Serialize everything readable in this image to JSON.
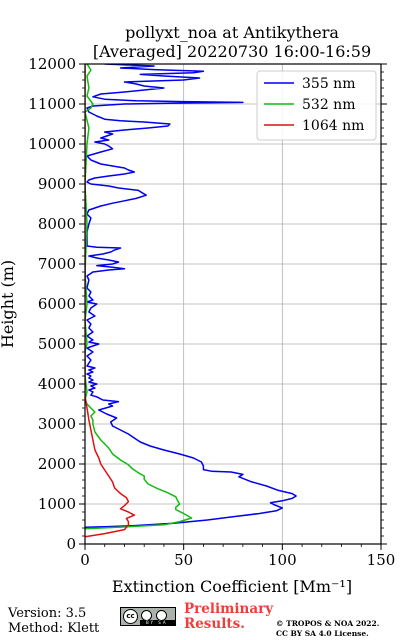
{
  "title": {
    "line1": "pollyxt_noa at Antikythera",
    "line2": "[Averaged] 20220730 16:00-16:59"
  },
  "footer": {
    "version": "Version: 3.5",
    "method": "Method: Klett",
    "preliminary_line1": "Preliminary",
    "preliminary_line2": "Results.",
    "copyright_line1": "© TROPOS & NOA 2022.",
    "copyright_line2": "CC BY SA 4.0 License.",
    "license_badge": "cc-by-sa-badge"
  },
  "chart_data": {
    "type": "line",
    "xlabel": "Extinction Coefficient [Mm⁻¹]",
    "ylabel": "Height (m)",
    "xlim": [
      0,
      150
    ],
    "ylim": [
      0,
      12000
    ],
    "xticks": [
      0,
      50,
      100,
      150
    ],
    "yticks": [
      0,
      1000,
      2000,
      3000,
      4000,
      5000,
      6000,
      7000,
      8000,
      9000,
      10000,
      11000,
      12000
    ],
    "grid": true,
    "legend_position": "top-right",
    "series": [
      {
        "name": "355 nm",
        "color": "#0000ee",
        "points": [
          [
            0,
            420
          ],
          [
            10,
            430
          ],
          [
            25,
            460
          ],
          [
            45,
            520
          ],
          [
            62,
            600
          ],
          [
            75,
            680
          ],
          [
            88,
            760
          ],
          [
            97,
            830
          ],
          [
            100,
            900
          ],
          [
            96,
            980
          ],
          [
            94,
            1030
          ],
          [
            100,
            1080
          ],
          [
            105,
            1140
          ],
          [
            107,
            1200
          ],
          [
            105,
            1260
          ],
          [
            98,
            1340
          ],
          [
            92,
            1450
          ],
          [
            84,
            1560
          ],
          [
            78,
            1680
          ],
          [
            80,
            1740
          ],
          [
            74,
            1800
          ],
          [
            64,
            1820
          ],
          [
            60,
            1860
          ],
          [
            60,
            1950
          ],
          [
            59,
            2050
          ],
          [
            55,
            2150
          ],
          [
            48,
            2250
          ],
          [
            40,
            2350
          ],
          [
            33,
            2450
          ],
          [
            28,
            2550
          ],
          [
            25,
            2650
          ],
          [
            22,
            2750
          ],
          [
            18,
            2850
          ],
          [
            14,
            2950
          ],
          [
            13,
            3050
          ],
          [
            16,
            3150
          ],
          [
            11,
            3250
          ],
          [
            7,
            3350
          ],
          [
            14,
            3450
          ],
          [
            12,
            3500
          ],
          [
            17,
            3560
          ],
          [
            9,
            3600
          ],
          [
            6,
            3680
          ],
          [
            3,
            3720
          ],
          [
            4,
            3800
          ],
          [
            2,
            3850
          ],
          [
            5,
            3900
          ],
          [
            3,
            3950
          ],
          [
            6,
            4000
          ],
          [
            2,
            4050
          ],
          [
            4,
            4100
          ],
          [
            2,
            4150
          ],
          [
            3,
            4200
          ],
          [
            1,
            4250
          ],
          [
            4,
            4300
          ],
          [
            2,
            4350
          ],
          [
            5,
            4400
          ],
          [
            1,
            4450
          ],
          [
            3,
            4600
          ],
          [
            1,
            4700
          ],
          [
            4,
            4800
          ],
          [
            1,
            4900
          ],
          [
            7,
            5000
          ],
          [
            2,
            5050
          ],
          [
            4,
            5100
          ],
          [
            1,
            5200
          ],
          [
            4,
            5300
          ],
          [
            2,
            5400
          ],
          [
            3,
            5500
          ],
          [
            1,
            5600
          ],
          [
            5,
            5700
          ],
          [
            2,
            5800
          ],
          [
            3,
            5900
          ],
          [
            6,
            6000
          ],
          [
            1,
            6050
          ],
          [
            4,
            6100
          ],
          [
            2,
            6200
          ],
          [
            3,
            6300
          ],
          [
            1,
            6400
          ],
          [
            2,
            6600
          ],
          [
            1,
            6700
          ],
          [
            4,
            6800
          ],
          [
            12,
            6850
          ],
          [
            20,
            6880
          ],
          [
            14,
            6920
          ],
          [
            6,
            6960
          ],
          [
            14,
            7000
          ],
          [
            17,
            7050
          ],
          [
            12,
            7100
          ],
          [
            6,
            7150
          ],
          [
            2,
            7200
          ],
          [
            9,
            7250
          ],
          [
            13,
            7300
          ],
          [
            15,
            7350
          ],
          [
            18,
            7400
          ],
          [
            6,
            7420
          ],
          [
            1,
            7450
          ],
          [
            1,
            7600
          ],
          [
            1,
            7800
          ],
          [
            2,
            8000
          ],
          [
            3,
            8150
          ],
          [
            1,
            8250
          ],
          [
            2,
            8350
          ],
          [
            8,
            8450
          ],
          [
            14,
            8520
          ],
          [
            20,
            8580
          ],
          [
            26,
            8640
          ],
          [
            31,
            8720
          ],
          [
            29,
            8780
          ],
          [
            27,
            8840
          ],
          [
            17,
            8900
          ],
          [
            12,
            8950
          ],
          [
            3,
            9000
          ],
          [
            1,
            9050
          ],
          [
            2,
            9100
          ],
          [
            5,
            9150
          ],
          [
            12,
            9200
          ],
          [
            20,
            9250
          ],
          [
            25,
            9300
          ],
          [
            22,
            9350
          ],
          [
            20,
            9400
          ],
          [
            14,
            9450
          ],
          [
            8,
            9500
          ],
          [
            3,
            9600
          ],
          [
            1,
            9700
          ],
          [
            8,
            9800
          ],
          [
            14,
            9880
          ],
          [
            12,
            9950
          ],
          [
            10,
            10000
          ],
          [
            5,
            10050
          ],
          [
            12,
            10100
          ],
          [
            8,
            10150
          ],
          [
            14,
            10250
          ],
          [
            10,
            10300
          ],
          [
            20,
            10350
          ],
          [
            32,
            10400
          ],
          [
            42,
            10450
          ],
          [
            43,
            10500
          ],
          [
            30,
            10550
          ],
          [
            18,
            10580
          ],
          [
            10,
            10620
          ],
          [
            6,
            10700
          ],
          [
            2,
            10800
          ],
          [
            1,
            10900
          ],
          [
            4,
            10950
          ],
          [
            20,
            11000
          ],
          [
            42,
            11020
          ],
          [
            80,
            11040
          ],
          [
            50,
            11060
          ],
          [
            26,
            11080
          ],
          [
            10,
            11120
          ],
          [
            4,
            11180
          ],
          [
            8,
            11250
          ],
          [
            20,
            11300
          ],
          [
            40,
            11400
          ],
          [
            30,
            11450
          ],
          [
            26,
            11500
          ],
          [
            20,
            11550
          ],
          [
            50,
            11600
          ],
          [
            58,
            11650
          ],
          [
            40,
            11700
          ],
          [
            28,
            11740
          ],
          [
            55,
            11780
          ],
          [
            60,
            11820
          ],
          [
            35,
            11860
          ],
          [
            18,
            11900
          ],
          [
            35,
            11950
          ],
          [
            10,
            12000
          ]
        ]
      },
      {
        "name": "532 nm",
        "color": "#11bb11",
        "points": [
          [
            0,
            380
          ],
          [
            8,
            400
          ],
          [
            25,
            440
          ],
          [
            40,
            480
          ],
          [
            48,
            560
          ],
          [
            54,
            650
          ],
          [
            50,
            760
          ],
          [
            46,
            860
          ],
          [
            46,
            920
          ],
          [
            48,
            1000
          ],
          [
            47,
            1080
          ],
          [
            46,
            1180
          ],
          [
            42,
            1280
          ],
          [
            37,
            1380
          ],
          [
            32,
            1500
          ],
          [
            30,
            1620
          ],
          [
            30,
            1700
          ],
          [
            27,
            1780
          ],
          [
            24,
            1880
          ],
          [
            22,
            1980
          ],
          [
            18,
            2100
          ],
          [
            14,
            2250
          ],
          [
            12,
            2400
          ],
          [
            8,
            2600
          ],
          [
            5,
            2800
          ],
          [
            4,
            3000
          ],
          [
            4,
            3100
          ],
          [
            3,
            3200
          ],
          [
            5,
            3300
          ],
          [
            3,
            3400
          ],
          [
            1,
            3500
          ],
          [
            0,
            3600
          ],
          [
            1,
            3800
          ],
          [
            0,
            4200
          ],
          [
            0,
            4800
          ],
          [
            1,
            5000
          ],
          [
            0,
            5600
          ],
          [
            1,
            6000
          ],
          [
            0,
            6800
          ],
          [
            1,
            8000
          ],
          [
            0,
            9000
          ],
          [
            1,
            10000
          ],
          [
            2,
            10400
          ],
          [
            0,
            10800
          ],
          [
            3,
            10900
          ],
          [
            4,
            11000
          ],
          [
            1,
            11200
          ],
          [
            2,
            11400
          ],
          [
            1,
            11700
          ],
          [
            3,
            11850
          ],
          [
            1,
            12000
          ]
        ]
      },
      {
        "name": "1064 nm",
        "color": "#dd1111",
        "points": [
          [
            0,
            180
          ],
          [
            10,
            260
          ],
          [
            20,
            360
          ],
          [
            22,
            480
          ],
          [
            22,
            560
          ],
          [
            21,
            640
          ],
          [
            25,
            720
          ],
          [
            22,
            800
          ],
          [
            18,
            880
          ],
          [
            20,
            960
          ],
          [
            22,
            1060
          ],
          [
            21,
            1160
          ],
          [
            18,
            1260
          ],
          [
            15,
            1400
          ],
          [
            14,
            1550
          ],
          [
            12,
            1700
          ],
          [
            10,
            1850
          ],
          [
            8,
            2000
          ],
          [
            7,
            2150
          ],
          [
            5,
            2350
          ],
          [
            4,
            2600
          ],
          [
            3,
            2850
          ],
          [
            2,
            3100
          ],
          [
            1,
            3400
          ],
          [
            0,
            3700
          ],
          [
            0,
            4500
          ],
          [
            0,
            5500
          ],
          [
            0,
            6500
          ],
          [
            0,
            8000
          ],
          [
            0,
            9500
          ],
          [
            0,
            11000
          ],
          [
            0,
            12000
          ]
        ]
      }
    ]
  }
}
